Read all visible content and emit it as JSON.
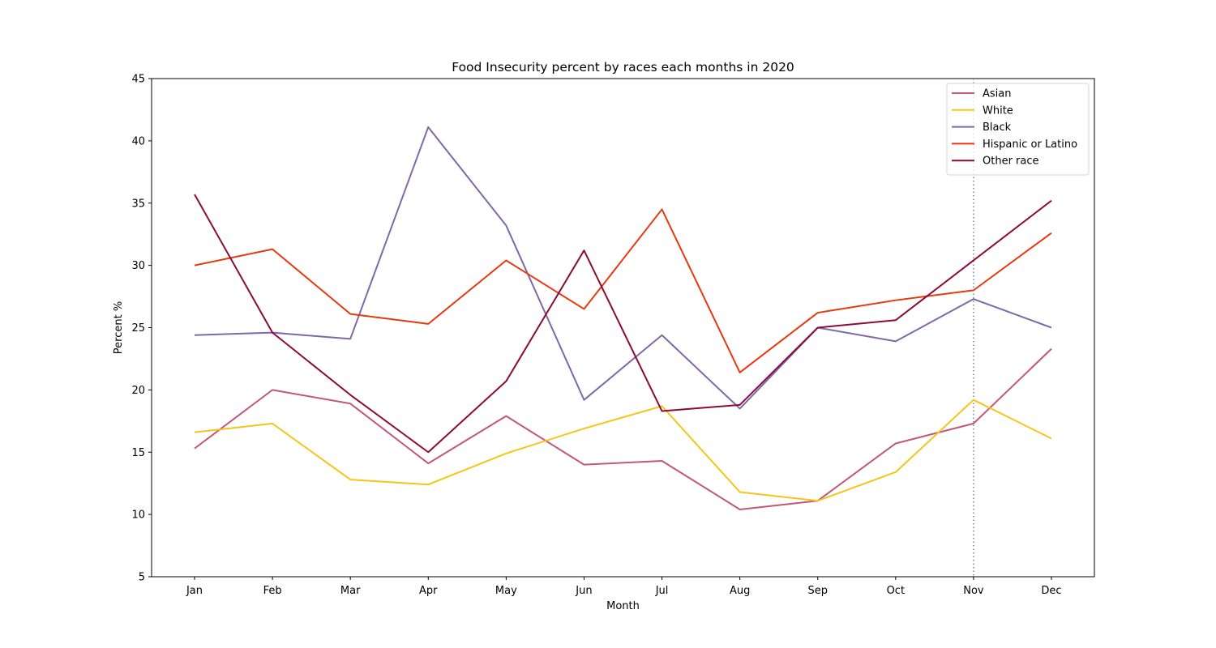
{
  "chart_data": {
    "type": "line",
    "title": "Food Insecurity percent by races each months in 2020",
    "xlabel": "Month",
    "ylabel": "Percent %",
    "categories": [
      "Jan",
      "Feb",
      "Mar",
      "Apr",
      "May",
      "Jun",
      "Jul",
      "Aug",
      "Sep",
      "Oct",
      "Nov",
      "Dec"
    ],
    "ylim": [
      5,
      45
    ],
    "yticks": [
      5,
      10,
      15,
      20,
      25,
      30,
      35,
      40,
      45
    ],
    "grid": false,
    "legend_position": "top-right",
    "reference_line": {
      "x": "Nov",
      "style": "dotted",
      "color": "#808080"
    },
    "series": [
      {
        "name": "Asian",
        "color": "#c2577a",
        "values": [
          15.3,
          20.0,
          18.9,
          14.1,
          17.9,
          14.0,
          14.3,
          10.4,
          11.1,
          15.7,
          17.3,
          23.3
        ]
      },
      {
        "name": "White",
        "color": "#f5c518",
        "values": [
          16.6,
          17.3,
          12.8,
          12.4,
          14.9,
          16.9,
          18.7,
          11.8,
          11.1,
          13.4,
          19.2,
          16.1
        ]
      },
      {
        "name": "Black",
        "color": "#8068a8",
        "values": [
          24.4,
          24.6,
          24.1,
          41.1,
          33.2,
          19.2,
          24.4,
          18.5,
          25.0,
          23.9,
          27.3,
          25.0
        ]
      },
      {
        "name": "Hispanic or Latino",
        "color": "#e8380d",
        "values": [
          30.0,
          31.3,
          26.1,
          25.3,
          30.4,
          26.5,
          34.5,
          21.4,
          26.2,
          27.2,
          28.0,
          32.6
        ]
      },
      {
        "name": "Other race",
        "color": "#8b0a3a",
        "values": [
          35.7,
          24.6,
          19.6,
          15.0,
          20.7,
          31.2,
          18.3,
          18.8,
          25.0,
          25.6,
          30.4,
          35.2
        ]
      }
    ]
  }
}
